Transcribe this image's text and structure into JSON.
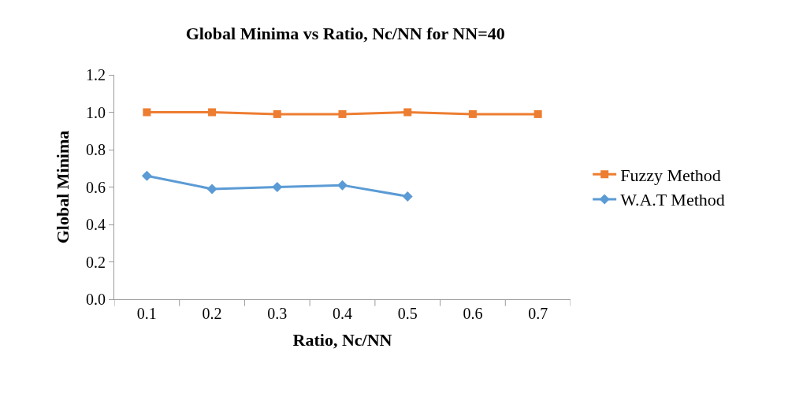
{
  "chart_data": {
    "type": "line",
    "title": "Global Minima vs Ratio, Nc/NN for NN=40",
    "xlabel": "Ratio, Nc/NN",
    "ylabel": "Global Minima",
    "categories": [
      "0.1",
      "0.2",
      "0.3",
      "0.4",
      "0.5",
      "0.6",
      "0.7"
    ],
    "series": [
      {
        "name": "Fuzzy Method",
        "color": "#ed7d31",
        "marker": "square",
        "values": [
          1.0,
          1.0,
          0.99,
          0.99,
          1.0,
          0.99,
          0.99
        ]
      },
      {
        "name": "W.A.T Method",
        "color": "#5b9bd5",
        "marker": "diamond",
        "values": [
          0.66,
          0.59,
          0.6,
          0.61,
          0.55,
          null,
          null
        ]
      }
    ],
    "ylim": [
      0,
      1.2
    ],
    "yticks": [
      {
        "value": 0,
        "label": "0.0"
      },
      0.2,
      0.4,
      0.6,
      0.8,
      {
        "value": 1,
        "label": "1.0"
      },
      1.2
    ],
    "legend": "right",
    "line_style": "solid"
  }
}
